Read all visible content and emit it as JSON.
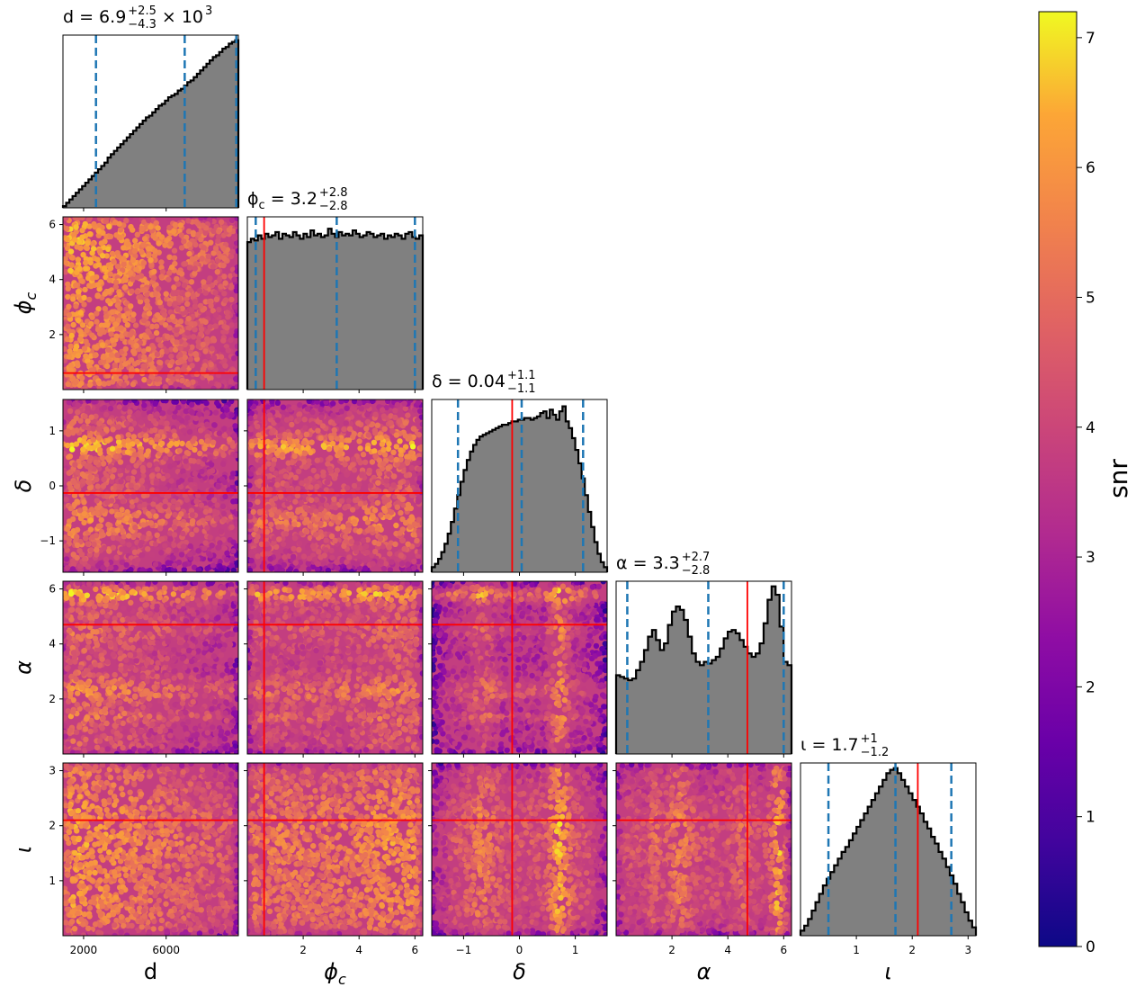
{
  "chart_data": {
    "type": "corner",
    "colorbar": {
      "label": "snr",
      "range": [
        0,
        7.2
      ],
      "ticks": [
        "0",
        "1",
        "2",
        "3",
        "4",
        "5",
        "6",
        "7"
      ],
      "colormap": "plasma"
    },
    "params": [
      {
        "key": "d",
        "axis_label": "d",
        "range": [
          1000,
          9500
        ],
        "ticks": [
          2000,
          6000
        ],
        "tick_labels": [
          "2000",
          "6000"
        ],
        "truth": null,
        "quantiles": [
          2600,
          6900,
          9400
        ],
        "title_main": "d = 6.9",
        "title_plus": "+2.5",
        "title_minus": "−4.3",
        "title_suffix": "× 10",
        "title_exp": "3",
        "hist": [
          0.01,
          0.03,
          0.05,
          0.07,
          0.09,
          0.11,
          0.13,
          0.15,
          0.17,
          0.19,
          0.21,
          0.23,
          0.25,
          0.27,
          0.3,
          0.32,
          0.34,
          0.36,
          0.38,
          0.4,
          0.42,
          0.44,
          0.46,
          0.48,
          0.5,
          0.52,
          0.54,
          0.55,
          0.57,
          0.59,
          0.61,
          0.62,
          0.64,
          0.66,
          0.67,
          0.68,
          0.7,
          0.71,
          0.73,
          0.75,
          0.76,
          0.78,
          0.8,
          0.82,
          0.84,
          0.86,
          0.88,
          0.9,
          0.91,
          0.93,
          0.95,
          0.96,
          0.98,
          0.99,
          1.0
        ]
      },
      {
        "key": "phic",
        "axis_label": "ϕ",
        "axis_sub": "c",
        "range": [
          0,
          6.28
        ],
        "ticks": [
          2,
          4,
          6
        ],
        "tick_labels": [
          "2",
          "4",
          "6"
        ],
        "truth": 0.6,
        "quantiles": [
          0.3,
          3.2,
          6.0
        ],
        "title_main": "ϕ",
        "title_sub": "c",
        "title_rest": " = 3.2",
        "title_plus": "+2.8",
        "title_minus": "−2.8",
        "hist": [
          0.88,
          0.9,
          0.89,
          0.92,
          0.9,
          0.93,
          0.91,
          0.92,
          0.94,
          0.9,
          0.93,
          0.92,
          0.91,
          0.94,
          0.92,
          0.9,
          0.93,
          0.91,
          0.95,
          0.92,
          0.93,
          0.91,
          0.92,
          0.96,
          0.93,
          0.91,
          0.94,
          0.92,
          0.93,
          0.92,
          0.95,
          0.93,
          0.91,
          0.92,
          0.94,
          0.93,
          0.91,
          0.92,
          0.93,
          0.9,
          0.92,
          0.91,
          0.93,
          0.92,
          0.9,
          0.93,
          0.94,
          0.91,
          0.9,
          0.92
        ]
      },
      {
        "key": "delta",
        "axis_label": "δ",
        "range": [
          -1.57,
          1.57
        ],
        "ticks": [
          -1,
          0,
          1
        ],
        "tick_labels": [
          "−1",
          "0",
          "1"
        ],
        "truth": -0.13,
        "quantiles": [
          -1.1,
          0.04,
          1.14
        ],
        "title_main": "δ = 0.04",
        "title_plus": "+1.1",
        "title_minus": "−1.1",
        "hist": [
          0.03,
          0.05,
          0.08,
          0.12,
          0.17,
          0.23,
          0.3,
          0.38,
          0.46,
          0.54,
          0.61,
          0.67,
          0.72,
          0.76,
          0.79,
          0.81,
          0.82,
          0.83,
          0.84,
          0.85,
          0.86,
          0.87,
          0.88,
          0.88,
          0.89,
          0.9,
          0.9,
          0.91,
          0.91,
          0.92,
          0.92,
          0.91,
          0.92,
          0.93,
          0.95,
          0.96,
          0.92,
          0.97,
          0.94,
          0.91,
          0.96,
          0.99,
          0.9,
          0.86,
          0.8,
          0.73,
          0.65,
          0.56,
          0.46,
          0.36,
          0.27,
          0.18,
          0.11,
          0.06,
          0.03
        ]
      },
      {
        "key": "alpha",
        "axis_label": "α",
        "range": [
          0,
          6.28
        ],
        "ticks": [
          2,
          4,
          6
        ],
        "tick_labels": [
          "2",
          "4",
          "6"
        ],
        "truth": 4.7,
        "quantiles": [
          0.4,
          3.3,
          6.0
        ],
        "title_main": "α = 3.3",
        "title_plus": "+2.7",
        "title_minus": "−2.8",
        "hist": [
          0.47,
          0.46,
          0.45,
          0.44,
          0.45,
          0.5,
          0.55,
          0.62,
          0.7,
          0.74,
          0.68,
          0.62,
          0.66,
          0.77,
          0.85,
          0.88,
          0.86,
          0.8,
          0.7,
          0.6,
          0.55,
          0.53,
          0.55,
          0.54,
          0.56,
          0.58,
          0.63,
          0.69,
          0.73,
          0.74,
          0.72,
          0.68,
          0.64,
          0.6,
          0.58,
          0.6,
          0.66,
          0.78,
          0.92,
          1.0,
          0.95,
          0.76,
          0.55,
          0.53
        ]
      },
      {
        "key": "iota",
        "axis_label": "ι",
        "range": [
          0,
          3.14
        ],
        "ticks": [
          1,
          2,
          3
        ],
        "tick_labels": [
          "1",
          "2",
          "3"
        ],
        "truth": 2.1,
        "quantiles": [
          0.5,
          1.7,
          2.7
        ],
        "title_main": "ι = 1.7",
        "title_plus": "+1",
        "title_minus": "−1.2",
        "hist": [
          0.03,
          0.06,
          0.1,
          0.15,
          0.2,
          0.25,
          0.3,
          0.34,
          0.38,
          0.42,
          0.46,
          0.5,
          0.53,
          0.57,
          0.61,
          0.65,
          0.69,
          0.73,
          0.77,
          0.81,
          0.85,
          0.89,
          0.93,
          0.97,
          0.99,
          1.0,
          0.97,
          0.93,
          0.89,
          0.85,
          0.81,
          0.77,
          0.73,
          0.68,
          0.64,
          0.59,
          0.55,
          0.5,
          0.46,
          0.41,
          0.36,
          0.31,
          0.25,
          0.2,
          0.14,
          0.09,
          0.05
        ]
      }
    ]
  }
}
